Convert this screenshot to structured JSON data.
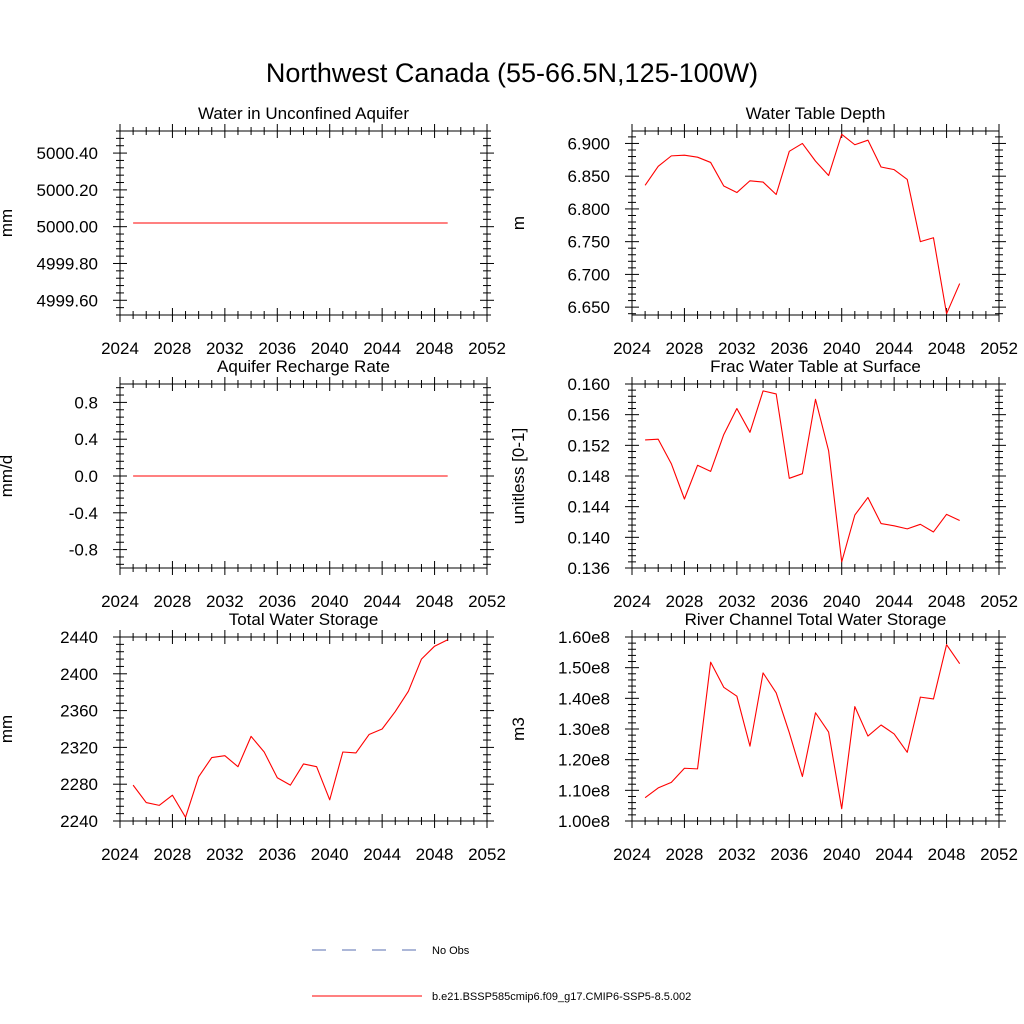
{
  "figure": {
    "title": "Northwest Canada (55-66.5N,125-100W)",
    "legend": [
      {
        "label": "No Obs",
        "style": "dashed",
        "color": "#5a6fb0"
      },
      {
        "label": "b.e21.BSSP585cmip6.f09_g17.CMIP6-SSP5-8.5.002",
        "style": "solid",
        "color": "#ff0000"
      }
    ]
  },
  "chart_data": [
    {
      "type": "line",
      "title": "Water in Unconfined Aquifer",
      "ylabel": "mm",
      "xlim": [
        2024,
        2052
      ],
      "ylim": [
        4999.52,
        5000.52
      ],
      "xticks": [
        2024,
        2028,
        2032,
        2036,
        2040,
        2044,
        2048,
        2052
      ],
      "yticks": [
        4999.6,
        4999.8,
        5000.0,
        5000.2,
        5000.4
      ],
      "ytick_labels": [
        "4999.60",
        "4999.80",
        "5000.00",
        "5000.20",
        "5000.40"
      ],
      "x": [
        2025,
        2026,
        2027,
        2028,
        2029,
        2030,
        2031,
        2032,
        2033,
        2034,
        2035,
        2036,
        2037,
        2038,
        2039,
        2040,
        2041,
        2042,
        2043,
        2044,
        2045,
        2046,
        2047,
        2048,
        2049
      ],
      "series": [
        {
          "color": "#ff0000",
          "values": [
            5000.02,
            5000.02,
            5000.02,
            5000.02,
            5000.02,
            5000.02,
            5000.02,
            5000.02,
            5000.02,
            5000.02,
            5000.02,
            5000.02,
            5000.02,
            5000.02,
            5000.02,
            5000.02,
            5000.02,
            5000.02,
            5000.02,
            5000.02,
            5000.02,
            5000.02,
            5000.02,
            5000.02,
            5000.02
          ]
        }
      ]
    },
    {
      "type": "line",
      "title": "Water Table Depth",
      "ylabel": "m",
      "xlim": [
        2024,
        2052
      ],
      "ylim": [
        6.638,
        6.919
      ],
      "xticks": [
        2024,
        2028,
        2032,
        2036,
        2040,
        2044,
        2048,
        2052
      ],
      "yticks": [
        6.65,
        6.7,
        6.75,
        6.8,
        6.85,
        6.9
      ],
      "ytick_labels": [
        "6.650",
        "6.700",
        "6.750",
        "6.800",
        "6.850",
        "6.900"
      ],
      "x": [
        2025,
        2026,
        2027,
        2028,
        2029,
        2030,
        2031,
        2032,
        2033,
        2034,
        2035,
        2036,
        2037,
        2038,
        2039,
        2040,
        2041,
        2042,
        2043,
        2044,
        2045,
        2046,
        2047,
        2048,
        2049
      ],
      "series": [
        {
          "color": "#ff0000",
          "values": [
            6.836,
            6.865,
            6.881,
            6.882,
            6.879,
            6.871,
            6.835,
            6.825,
            6.843,
            6.841,
            6.822,
            6.888,
            6.9,
            6.873,
            6.851,
            6.914,
            6.898,
            6.905,
            6.864,
            6.86,
            6.845,
            6.75,
            6.756,
            6.64,
            6.686
          ]
        }
      ]
    },
    {
      "type": "line",
      "title": "Aquifer Recharge Rate",
      "ylabel": "mm/d",
      "xlim": [
        2024,
        2052
      ],
      "ylim": [
        -1.0,
        1.0
      ],
      "xticks": [
        2024,
        2028,
        2032,
        2036,
        2040,
        2044,
        2048,
        2052
      ],
      "yticks": [
        -0.8,
        -0.4,
        0.0,
        0.4,
        0.8
      ],
      "ytick_labels": [
        "-0.8",
        "-0.4",
        "0.0",
        "0.4",
        "0.8"
      ],
      "x": [
        2025,
        2026,
        2027,
        2028,
        2029,
        2030,
        2031,
        2032,
        2033,
        2034,
        2035,
        2036,
        2037,
        2038,
        2039,
        2040,
        2041,
        2042,
        2043,
        2044,
        2045,
        2046,
        2047,
        2048,
        2049
      ],
      "series": [
        {
          "color": "#ff0000",
          "values": [
            0,
            0,
            0,
            0,
            0,
            0,
            0,
            0,
            0,
            0,
            0,
            0,
            0,
            0,
            0,
            0,
            0,
            0,
            0,
            0,
            0,
            0,
            0,
            0,
            0
          ]
        }
      ]
    },
    {
      "type": "line",
      "title": "Frac Water Table at Surface",
      "ylabel": "unitless [0-1]",
      "xlim": [
        2024,
        2052
      ],
      "ylim": [
        0.136,
        0.16
      ],
      "xticks": [
        2024,
        2028,
        2032,
        2036,
        2040,
        2044,
        2048,
        2052
      ],
      "yticks": [
        0.136,
        0.14,
        0.144,
        0.148,
        0.152,
        0.156,
        0.16
      ],
      "ytick_labels": [
        "0.136",
        "0.140",
        "0.144",
        "0.148",
        "0.152",
        "0.156",
        "0.160"
      ],
      "x": [
        2025,
        2026,
        2027,
        2028,
        2029,
        2030,
        2031,
        2032,
        2033,
        2034,
        2035,
        2036,
        2037,
        2038,
        2039,
        2040,
        2041,
        2042,
        2043,
        2044,
        2045,
        2046,
        2047,
        2048,
        2049
      ],
      "series": [
        {
          "color": "#ff0000",
          "values": [
            0.1527,
            0.1528,
            0.1496,
            0.145,
            0.1494,
            0.1486,
            0.1534,
            0.1568,
            0.1537,
            0.1591,
            0.1587,
            0.1477,
            0.1483,
            0.158,
            0.1513,
            0.1368,
            0.1429,
            0.1452,
            0.1418,
            0.1415,
            0.1411,
            0.1417,
            0.1407,
            0.143,
            0.1422
          ]
        }
      ]
    },
    {
      "type": "line",
      "title": "Total Water Storage",
      "ylabel": "mm",
      "xlim": [
        2024,
        2052
      ],
      "ylim": [
        2240,
        2440
      ],
      "xticks": [
        2024,
        2028,
        2032,
        2036,
        2040,
        2044,
        2048,
        2052
      ],
      "yticks": [
        2240,
        2280,
        2320,
        2360,
        2400,
        2440
      ],
      "ytick_labels": [
        "2240",
        "2280",
        "2320",
        "2360",
        "2400",
        "2440"
      ],
      "x": [
        2025,
        2026,
        2027,
        2028,
        2029,
        2030,
        2031,
        2032,
        2033,
        2034,
        2035,
        2036,
        2037,
        2038,
        2039,
        2040,
        2041,
        2042,
        2043,
        2044,
        2045,
        2046,
        2047,
        2048,
        2049
      ],
      "series": [
        {
          "color": "#ff0000",
          "values": [
            2279,
            2260,
            2257,
            2268,
            2244,
            2288,
            2309,
            2311,
            2299,
            2332,
            2315,
            2287,
            2279,
            2302,
            2299,
            2263,
            2315,
            2314,
            2334,
            2340,
            2359,
            2381,
            2416,
            2430,
            2437
          ]
        }
      ]
    },
    {
      "type": "line",
      "title": "River Channel Total Water Storage",
      "ylabel": "m3",
      "xlim": [
        2024,
        2052
      ],
      "ylim": [
        100000000,
        160000000
      ],
      "xticks": [
        2024,
        2028,
        2032,
        2036,
        2040,
        2044,
        2048,
        2052
      ],
      "yticks": [
        100000000,
        110000000,
        120000000,
        130000000,
        140000000,
        150000000,
        160000000
      ],
      "ytick_labels": [
        "1.00e8",
        "1.10e8",
        "1.20e8",
        "1.30e8",
        "1.40e8",
        "1.50e8",
        "1.60e8"
      ],
      "x": [
        2025,
        2026,
        2027,
        2028,
        2029,
        2030,
        2031,
        2032,
        2033,
        2034,
        2035,
        2036,
        2037,
        2038,
        2039,
        2040,
        2041,
        2042,
        2043,
        2044,
        2045,
        2046,
        2047,
        2048,
        2049
      ],
      "series": [
        {
          "color": "#ff0000",
          "values": [
            107600000,
            110800000,
            112600000,
            117200000,
            117000000,
            151800000,
            143600000,
            140700000,
            124400000,
            148300000,
            141800000,
            128800000,
            114500000,
            135300000,
            129000000,
            104000000,
            137300000,
            127700000,
            131300000,
            128400000,
            122400000,
            140400000,
            139800000,
            157500000,
            151300000
          ]
        }
      ]
    }
  ]
}
